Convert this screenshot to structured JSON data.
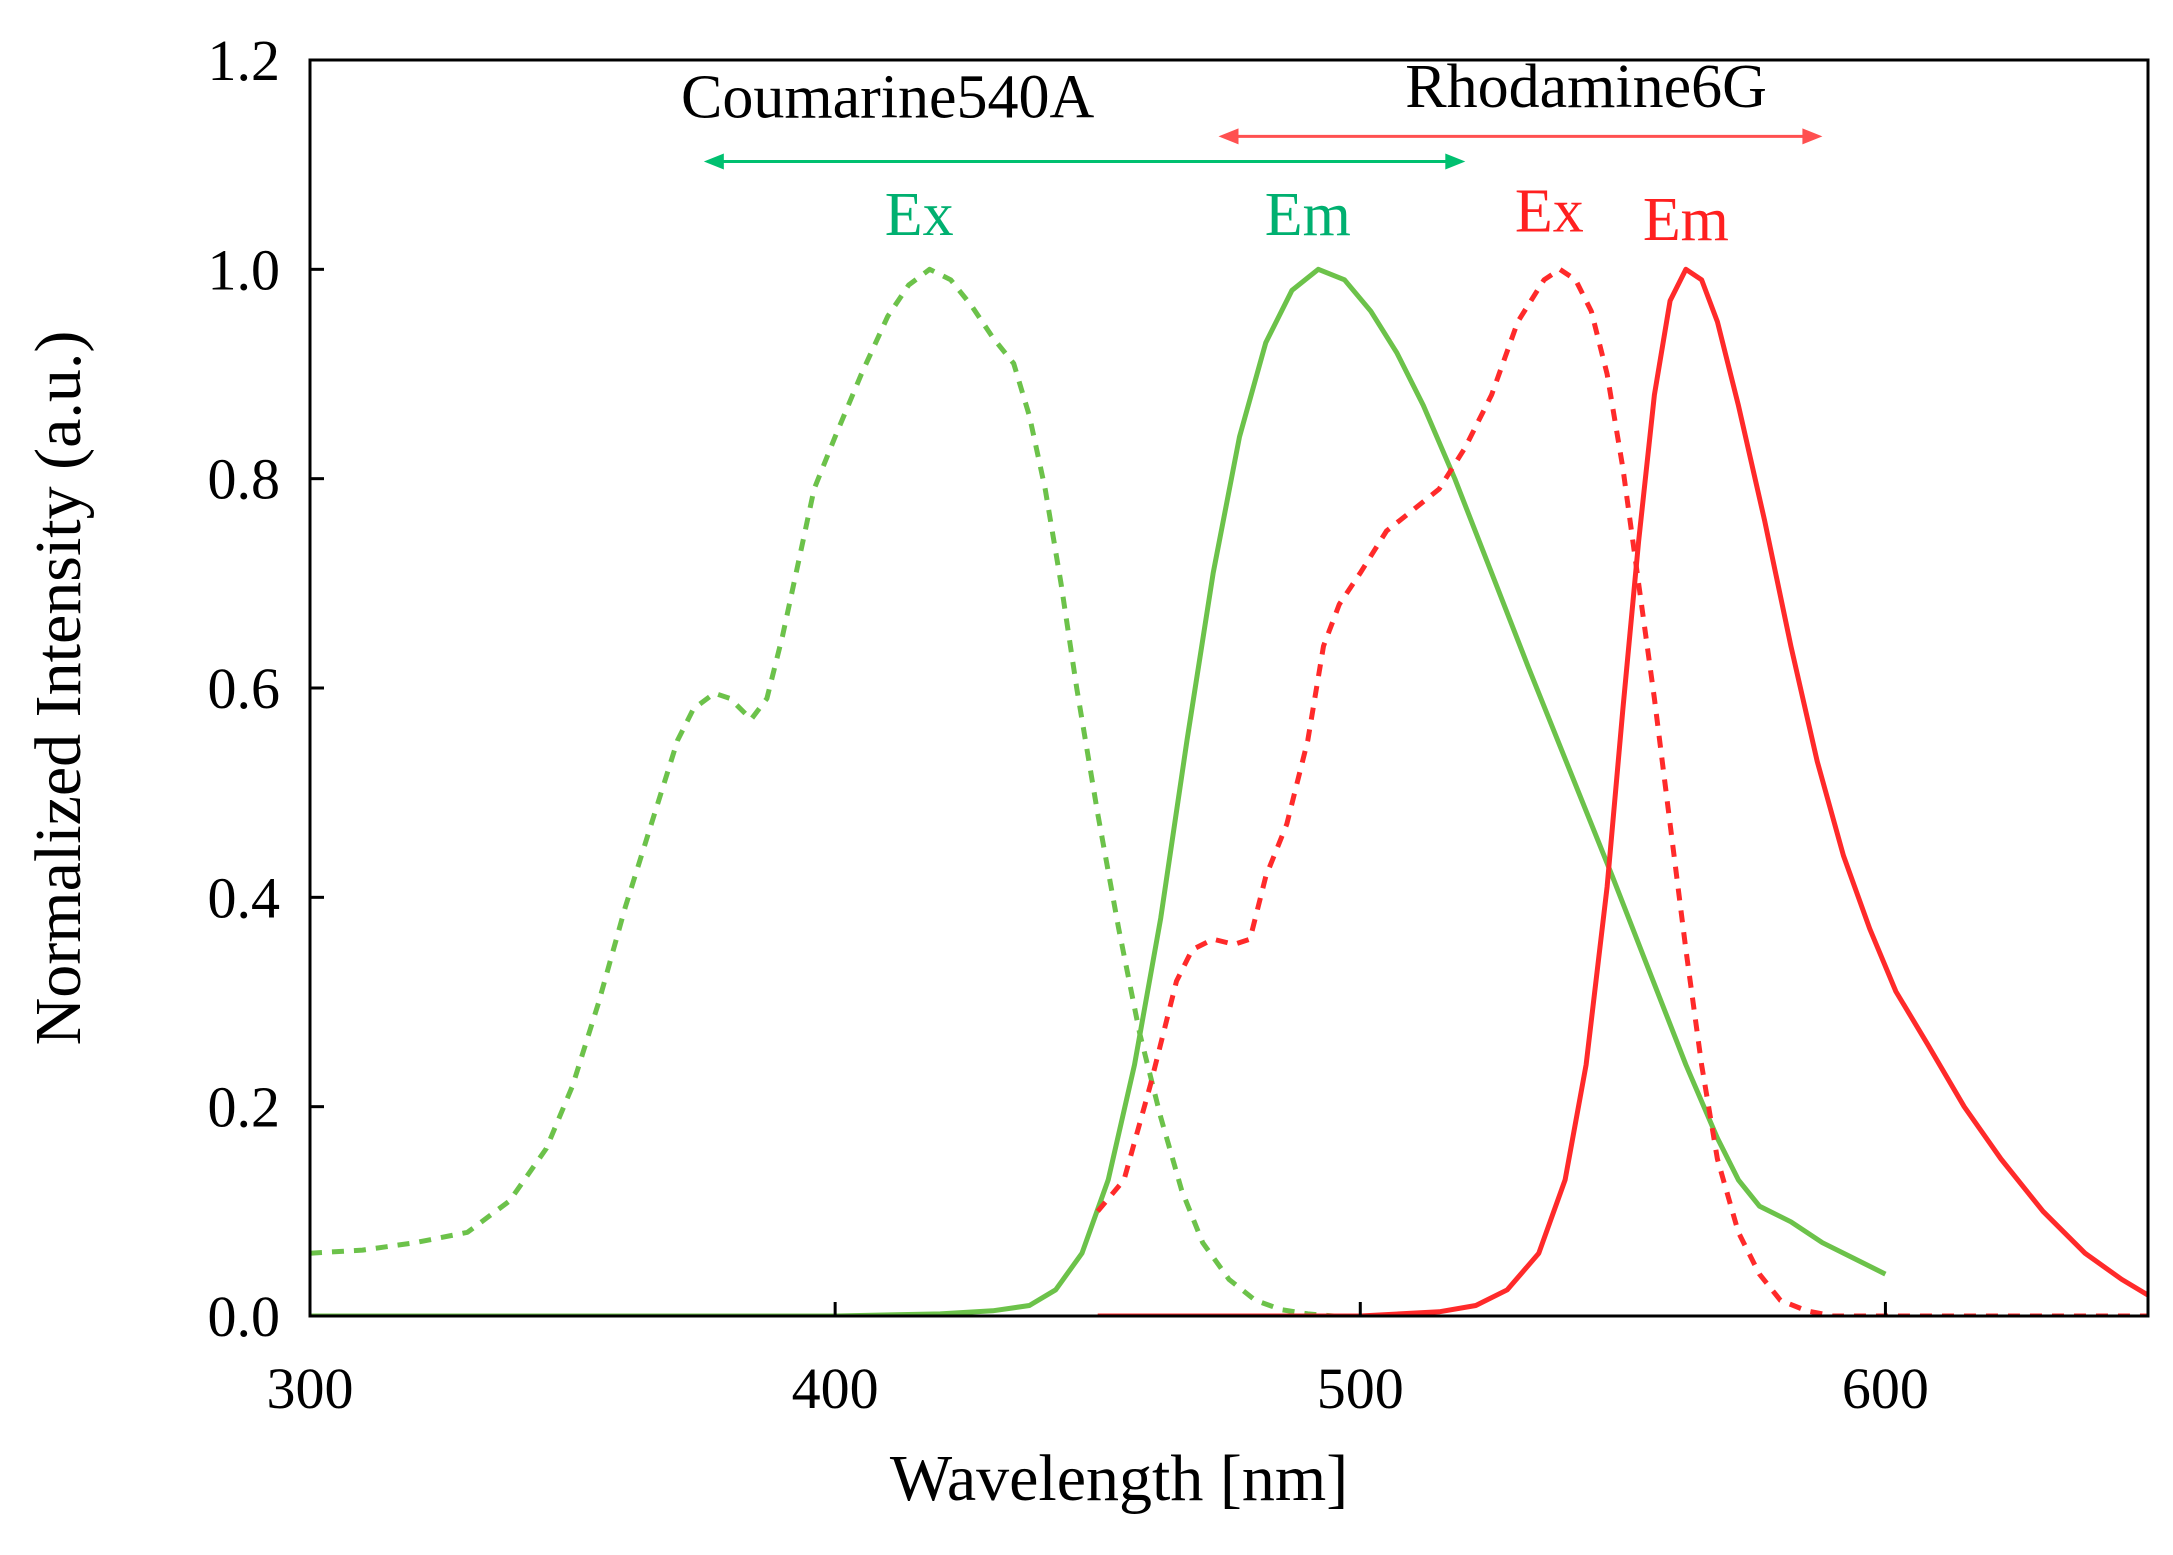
{
  "chart_data": {
    "type": "line",
    "title": "",
    "xlabel": "Wavelength [nm]",
    "ylabel": "Normalized Intensity (a.u.)",
    "xlim": [
      300,
      650
    ],
    "ylim": [
      0,
      1.2
    ],
    "grid": false,
    "x_ticks": [
      300,
      400,
      500,
      600
    ],
    "x_tick_labels": [
      "300",
      "400",
      "500",
      "600"
    ],
    "y_ticks": [
      0,
      0.2,
      0.4,
      0.6,
      0.8,
      1.0,
      1.2
    ],
    "y_tick_labels": [
      "0.0",
      "0.2",
      "0.4",
      "0.6",
      "0.8",
      "1.0",
      "1.2"
    ],
    "colors": {
      "green": "#6cc24a",
      "red": "#ff2a2a",
      "green_label": "#00b070",
      "red_label": "#ff2020",
      "arrow_green": "#00c070",
      "arrow_red": "#ff5050"
    },
    "series": [
      {
        "name": "Coumarine540A Ex",
        "color": "green",
        "style": "dashed",
        "points": [
          [
            300,
            0.06
          ],
          [
            310,
            0.063
          ],
          [
            320,
            0.07
          ],
          [
            330,
            0.08
          ],
          [
            338,
            0.11
          ],
          [
            345,
            0.16
          ],
          [
            350,
            0.22
          ],
          [
            355,
            0.3
          ],
          [
            360,
            0.39
          ],
          [
            365,
            0.47
          ],
          [
            370,
            0.55
          ],
          [
            373,
            0.58
          ],
          [
            377,
            0.595
          ],
          [
            380,
            0.59
          ],
          [
            384,
            0.57
          ],
          [
            387,
            0.59
          ],
          [
            390,
            0.65
          ],
          [
            393,
            0.72
          ],
          [
            396,
            0.79
          ],
          [
            400,
            0.84
          ],
          [
            405,
            0.9
          ],
          [
            410,
            0.955
          ],
          [
            414,
            0.985
          ],
          [
            418,
            1.0
          ],
          [
            422,
            0.99
          ],
          [
            426,
            0.965
          ],
          [
            430,
            0.935
          ],
          [
            434,
            0.91
          ],
          [
            437,
            0.86
          ],
          [
            440,
            0.79
          ],
          [
            443,
            0.7
          ],
          [
            446,
            0.6
          ],
          [
            450,
            0.48
          ],
          [
            454,
            0.37
          ],
          [
            458,
            0.27
          ],
          [
            462,
            0.19
          ],
          [
            466,
            0.12
          ],
          [
            470,
            0.07
          ],
          [
            475,
            0.035
          ],
          [
            480,
            0.015
          ],
          [
            485,
            0.006
          ],
          [
            490,
            0.002
          ],
          [
            495,
            0.0
          ]
        ]
      },
      {
        "name": "Coumarine540A Em",
        "color": "green",
        "style": "solid",
        "points": [
          [
            300,
            0.0
          ],
          [
            400,
            0.0
          ],
          [
            420,
            0.002
          ],
          [
            430,
            0.005
          ],
          [
            437,
            0.01
          ],
          [
            442,
            0.025
          ],
          [
            447,
            0.06
          ],
          [
            452,
            0.13
          ],
          [
            457,
            0.24
          ],
          [
            462,
            0.38
          ],
          [
            467,
            0.55
          ],
          [
            472,
            0.71
          ],
          [
            477,
            0.84
          ],
          [
            482,
            0.93
          ],
          [
            487,
            0.98
          ],
          [
            492,
            1.0
          ],
          [
            497,
            0.99
          ],
          [
            502,
            0.96
          ],
          [
            507,
            0.92
          ],
          [
            512,
            0.87
          ],
          [
            518,
            0.8
          ],
          [
            525,
            0.71
          ],
          [
            532,
            0.62
          ],
          [
            540,
            0.52
          ],
          [
            548,
            0.42
          ],
          [
            555,
            0.33
          ],
          [
            562,
            0.24
          ],
          [
            568,
            0.17
          ],
          [
            572,
            0.13
          ],
          [
            576,
            0.105
          ],
          [
            582,
            0.09
          ],
          [
            588,
            0.07
          ],
          [
            594,
            0.055
          ],
          [
            600,
            0.04
          ]
        ]
      },
      {
        "name": "Rhodamine6G Ex",
        "color": "red",
        "style": "dashed",
        "points": [
          [
            450,
            0.1
          ],
          [
            455,
            0.13
          ],
          [
            460,
            0.22
          ],
          [
            465,
            0.32
          ],
          [
            468,
            0.35
          ],
          [
            472,
            0.36
          ],
          [
            476,
            0.355
          ],
          [
            479,
            0.36
          ],
          [
            482,
            0.42
          ],
          [
            486,
            0.47
          ],
          [
            490,
            0.55
          ],
          [
            493,
            0.64
          ],
          [
            496,
            0.68
          ],
          [
            500,
            0.71
          ],
          [
            505,
            0.75
          ],
          [
            510,
            0.77
          ],
          [
            515,
            0.79
          ],
          [
            520,
            0.83
          ],
          [
            525,
            0.88
          ],
          [
            530,
            0.95
          ],
          [
            535,
            0.99
          ],
          [
            538,
            1.0
          ],
          [
            541,
            0.99
          ],
          [
            544,
            0.96
          ],
          [
            547,
            0.9
          ],
          [
            550,
            0.81
          ],
          [
            553,
            0.7
          ],
          [
            556,
            0.59
          ],
          [
            559,
            0.47
          ],
          [
            562,
            0.35
          ],
          [
            565,
            0.24
          ],
          [
            568,
            0.15
          ],
          [
            572,
            0.08
          ],
          [
            576,
            0.04
          ],
          [
            580,
            0.015
          ],
          [
            585,
            0.005
          ],
          [
            590,
            0.0
          ],
          [
            650,
            0.0
          ]
        ]
      },
      {
        "name": "Rhodamine6G Em",
        "color": "red",
        "style": "solid",
        "points": [
          [
            450,
            0.0
          ],
          [
            500,
            0.0
          ],
          [
            515,
            0.004
          ],
          [
            522,
            0.01
          ],
          [
            528,
            0.025
          ],
          [
            534,
            0.06
          ],
          [
            539,
            0.13
          ],
          [
            543,
            0.24
          ],
          [
            547,
            0.41
          ],
          [
            550,
            0.58
          ],
          [
            553,
            0.74
          ],
          [
            556,
            0.88
          ],
          [
            559,
            0.97
          ],
          [
            562,
            1.0
          ],
          [
            565,
            0.99
          ],
          [
            568,
            0.95
          ],
          [
            572,
            0.87
          ],
          [
            577,
            0.76
          ],
          [
            582,
            0.64
          ],
          [
            587,
            0.53
          ],
          [
            592,
            0.44
          ],
          [
            597,
            0.37
          ],
          [
            602,
            0.31
          ],
          [
            608,
            0.26
          ],
          [
            615,
            0.2
          ],
          [
            622,
            0.15
          ],
          [
            630,
            0.1
          ],
          [
            638,
            0.06
          ],
          [
            645,
            0.035
          ],
          [
            650,
            0.02
          ]
        ]
      }
    ],
    "annotations": [
      {
        "text": "Coumarine540A",
        "x": 410,
        "y": 1.145,
        "anchor": "middle"
      },
      {
        "text": "Rhodamine6G",
        "x": 543,
        "y": 1.155,
        "anchor": "middle"
      }
    ],
    "arrows": [
      {
        "name": "coumarine-range",
        "x1": 375,
        "x2": 520,
        "y": 1.103,
        "color": "arrow_green"
      },
      {
        "name": "rhodamine-range",
        "x1": 473,
        "x2": 588,
        "y": 1.127,
        "color": "arrow_red"
      }
    ],
    "series_labels": [
      {
        "text": "Ex",
        "x": 416,
        "y": 1.033,
        "color": "green_label"
      },
      {
        "text": "Em",
        "x": 490,
        "y": 1.033,
        "color": "green_label"
      },
      {
        "text": "Ex",
        "x": 536,
        "y": 1.036,
        "color": "red_label"
      },
      {
        "text": "Em",
        "x": 562,
        "y": 1.028,
        "color": "red_label"
      }
    ]
  }
}
